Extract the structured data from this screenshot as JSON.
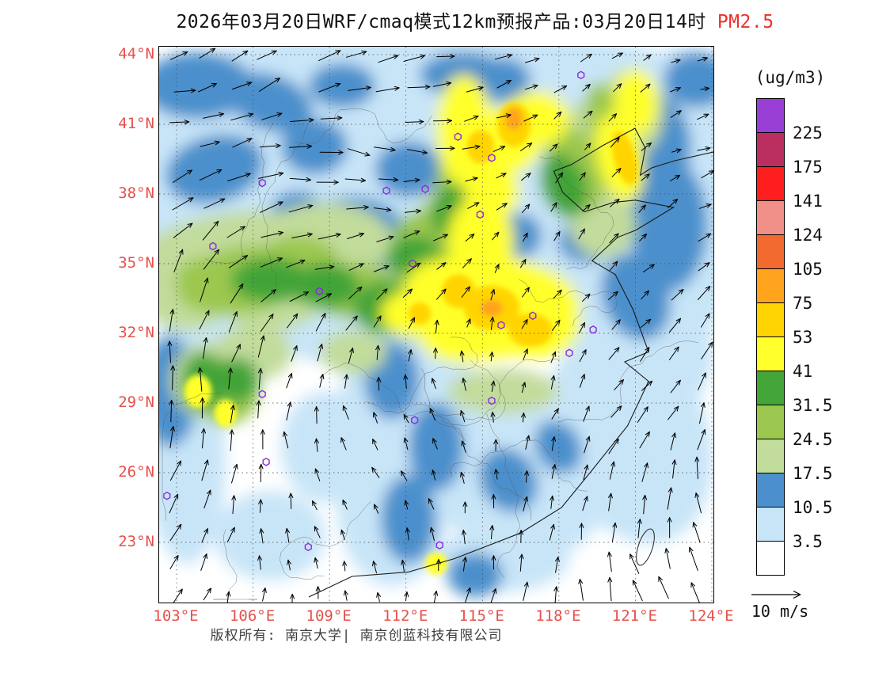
{
  "title": {
    "main": "2026年03月20日WRF/cmaq模式12km预报产品:03月20日14时",
    "pollutant": "PM2.5"
  },
  "footer": {
    "copyright": "版权所有: 南京大学| 南京创蓝科技有限公司"
  },
  "axes": {
    "lat_labels": [
      "44°N",
      "41°N",
      "38°N",
      "35°N",
      "32°N",
      "29°N",
      "26°N",
      "23°N"
    ],
    "lon_labels": [
      "103°E",
      "106°E",
      "109°E",
      "112°E",
      "115°E",
      "118°E",
      "121°E",
      "124°E"
    ]
  },
  "colorbar": {
    "unit_label": "(ug/m3)",
    "boundaries": [
      "225",
      "175",
      "141",
      "124",
      "105",
      "75",
      "53",
      "41",
      "31.5",
      "24.5",
      "17.5",
      "10.5",
      "3.5"
    ],
    "colors_top_to_bottom": [
      "#993fd6",
      "#bb2f60",
      "#ff1e1e",
      "#f09088",
      "#f26a2d",
      "#ffa41c",
      "#ffd400",
      "#ffff2b",
      "#43a437",
      "#9cc84f",
      "#c2dc9b",
      "#4b90cc",
      "#c8e5f8",
      "#ffffff"
    ]
  },
  "wind_legend": {
    "label": "10 m/s"
  },
  "colors": {
    "axis_label": "#e6514b",
    "title_pollutant": "#e8312c",
    "marker": "#8a2be2"
  },
  "map": {
    "markers": [
      [
        0.761,
        0.051
      ],
      [
        0.539,
        0.162
      ],
      [
        0.6,
        0.2
      ],
      [
        0.186,
        0.245
      ],
      [
        0.41,
        0.259
      ],
      [
        0.48,
        0.256
      ],
      [
        0.579,
        0.302
      ],
      [
        0.097,
        0.359
      ],
      [
        0.457,
        0.39
      ],
      [
        0.289,
        0.44
      ],
      [
        0.617,
        0.501
      ],
      [
        0.674,
        0.484
      ],
      [
        0.783,
        0.509
      ],
      [
        0.74,
        0.551
      ],
      [
        0.6,
        0.637
      ],
      [
        0.461,
        0.672
      ],
      [
        0.186,
        0.625
      ],
      [
        0.193,
        0.747
      ],
      [
        0.014,
        0.808
      ],
      [
        0.269,
        0.9
      ],
      [
        0.506,
        0.897
      ]
    ],
    "blobs": [
      [
        12,
        0.5,
        0.12,
        0.55,
        0.16,
        0
      ],
      [
        12,
        0.15,
        0.3,
        0.22,
        0.18,
        0
      ],
      [
        12,
        0.45,
        0.3,
        0.2,
        0.15,
        0
      ],
      [
        12,
        0.85,
        0.3,
        0.2,
        0.3,
        0
      ],
      [
        12,
        0.75,
        0.12,
        0.18,
        0.12,
        0
      ],
      [
        12,
        0.95,
        0.08,
        0.1,
        0.08,
        0
      ],
      [
        12,
        0.32,
        0.45,
        0.15,
        0.12,
        0
      ],
      [
        12,
        0.45,
        0.62,
        0.12,
        0.18,
        0
      ],
      [
        12,
        0.42,
        0.82,
        0.1,
        0.15,
        0
      ],
      [
        12,
        0.55,
        0.75,
        0.08,
        0.12,
        0
      ],
      [
        12,
        0.3,
        0.72,
        0.08,
        0.1,
        0
      ],
      [
        12,
        0.68,
        0.78,
        0.12,
        0.14,
        -30
      ],
      [
        12,
        0.85,
        0.7,
        0.14,
        0.2,
        -20
      ],
      [
        12,
        0.9,
        0.55,
        0.1,
        0.12,
        0
      ],
      [
        12,
        0.05,
        0.75,
        0.07,
        0.18,
        0
      ],
      [
        12,
        0.2,
        0.88,
        0.1,
        0.08,
        0
      ],
      [
        12,
        0.62,
        0.92,
        0.12,
        0.06,
        0
      ],
      [
        12,
        0.1,
        0.52,
        0.1,
        0.08,
        0
      ],
      [
        11,
        0.07,
        0.07,
        0.1,
        0.06,
        0
      ],
      [
        11,
        0.2,
        0.1,
        0.08,
        0.05,
        20
      ],
      [
        11,
        0.33,
        0.07,
        0.06,
        0.04,
        0
      ],
      [
        11,
        0.55,
        0.05,
        0.08,
        0.04,
        0
      ],
      [
        11,
        0.1,
        0.22,
        0.09,
        0.06,
        -15
      ],
      [
        11,
        0.28,
        0.18,
        0.06,
        0.05,
        0
      ],
      [
        11,
        0.45,
        0.22,
        0.06,
        0.05,
        0
      ],
      [
        11,
        0.62,
        0.06,
        0.05,
        0.04,
        0
      ],
      [
        11,
        0.97,
        0.06,
        0.06,
        0.05,
        0
      ],
      [
        11,
        0.35,
        0.33,
        0.09,
        0.06,
        0
      ],
      [
        11,
        0.42,
        0.4,
        0.07,
        0.06,
        0
      ],
      [
        11,
        0.3,
        0.4,
        0.06,
        0.05,
        0
      ],
      [
        11,
        0.25,
        0.3,
        0.05,
        0.04,
        0
      ],
      [
        11,
        0.88,
        0.18,
        0.08,
        0.1,
        0
      ],
      [
        11,
        0.92,
        0.32,
        0.07,
        0.12,
        0
      ],
      [
        11,
        0.86,
        0.45,
        0.06,
        0.08,
        -20
      ],
      [
        11,
        0.65,
        0.34,
        0.04,
        0.04,
        0
      ],
      [
        11,
        0.77,
        0.35,
        0.05,
        0.04,
        0
      ],
      [
        11,
        0.42,
        0.6,
        0.05,
        0.07,
        0
      ],
      [
        11,
        0.5,
        0.72,
        0.05,
        0.08,
        0
      ],
      [
        11,
        0.45,
        0.85,
        0.05,
        0.08,
        0
      ],
      [
        11,
        0.63,
        0.78,
        0.05,
        0.06,
        -30
      ],
      [
        11,
        0.72,
        0.72,
        0.04,
        0.05,
        -30
      ],
      [
        11,
        0.02,
        0.62,
        0.05,
        0.1,
        0
      ],
      [
        11,
        0.57,
        0.95,
        0.05,
        0.04,
        0
      ],
      [
        10,
        0.12,
        0.38,
        0.18,
        0.08,
        -10
      ],
      [
        10,
        0.05,
        0.45,
        0.08,
        0.06,
        0
      ],
      [
        10,
        0.3,
        0.35,
        0.12,
        0.07,
        0
      ],
      [
        10,
        0.2,
        0.45,
        0.1,
        0.06,
        0
      ],
      [
        10,
        0.1,
        0.6,
        0.08,
        0.07,
        0
      ],
      [
        10,
        0.17,
        0.55,
        0.07,
        0.05,
        0
      ],
      [
        10,
        0.55,
        0.3,
        0.08,
        0.06,
        0
      ],
      [
        10,
        0.48,
        0.45,
        0.1,
        0.08,
        0
      ],
      [
        10,
        0.78,
        0.2,
        0.08,
        0.1,
        0
      ],
      [
        10,
        0.85,
        0.12,
        0.06,
        0.08,
        0
      ],
      [
        10,
        0.8,
        0.32,
        0.06,
        0.06,
        0
      ],
      [
        10,
        0.62,
        0.62,
        0.1,
        0.04,
        0
      ],
      [
        10,
        0.35,
        0.55,
        0.06,
        0.04,
        0
      ],
      [
        9,
        0.15,
        0.42,
        0.12,
        0.06,
        -10
      ],
      [
        9,
        0.25,
        0.4,
        0.08,
        0.06,
        0
      ],
      [
        9,
        0.35,
        0.44,
        0.08,
        0.05,
        0
      ],
      [
        9,
        0.08,
        0.42,
        0.05,
        0.04,
        0
      ],
      [
        9,
        0.12,
        0.62,
        0.06,
        0.06,
        0
      ],
      [
        9,
        0.5,
        0.35,
        0.08,
        0.06,
        0
      ],
      [
        9,
        0.55,
        0.25,
        0.05,
        0.08,
        0
      ],
      [
        9,
        0.75,
        0.22,
        0.05,
        0.08,
        -20
      ],
      [
        9,
        0.82,
        0.16,
        0.04,
        0.1,
        -20
      ],
      [
        8,
        0.2,
        0.42,
        0.07,
        0.04,
        0
      ],
      [
        8,
        0.3,
        0.43,
        0.06,
        0.04,
        0
      ],
      [
        8,
        0.42,
        0.47,
        0.07,
        0.05,
        0
      ],
      [
        8,
        0.5,
        0.42,
        0.06,
        0.05,
        0
      ],
      [
        8,
        0.46,
        0.38,
        0.05,
        0.04,
        0
      ],
      [
        8,
        0.08,
        0.6,
        0.04,
        0.05,
        0
      ],
      [
        8,
        0.14,
        0.6,
        0.04,
        0.04,
        0
      ],
      [
        8,
        0.53,
        0.3,
        0.04,
        0.05,
        0
      ],
      [
        8,
        0.57,
        0.2,
        0.04,
        0.06,
        0
      ],
      [
        8,
        0.73,
        0.25,
        0.04,
        0.06,
        -20
      ],
      [
        7,
        0.6,
        0.47,
        0.16,
        0.09,
        0
      ],
      [
        7,
        0.68,
        0.5,
        0.08,
        0.06,
        0
      ],
      [
        7,
        0.52,
        0.44,
        0.08,
        0.06,
        0
      ],
      [
        7,
        0.55,
        0.52,
        0.08,
        0.05,
        0
      ],
      [
        7,
        0.58,
        0.35,
        0.06,
        0.08,
        0
      ],
      [
        7,
        0.55,
        0.15,
        0.05,
        0.1,
        0
      ],
      [
        7,
        0.62,
        0.17,
        0.07,
        0.06,
        0
      ],
      [
        7,
        0.68,
        0.13,
        0.06,
        0.05,
        0
      ],
      [
        7,
        0.6,
        0.26,
        0.05,
        0.05,
        0
      ],
      [
        7,
        0.83,
        0.2,
        0.04,
        0.08,
        -15
      ],
      [
        7,
        0.86,
        0.1,
        0.04,
        0.06,
        0
      ],
      [
        7,
        0.07,
        0.62,
        0.025,
        0.03,
        0
      ],
      [
        7,
        0.12,
        0.66,
        0.02,
        0.025,
        0
      ],
      [
        7,
        0.5,
        0.93,
        0.02,
        0.02,
        0
      ],
      [
        7,
        0.45,
        0.48,
        0.05,
        0.04,
        0
      ],
      [
        6,
        0.6,
        0.47,
        0.05,
        0.04,
        0
      ],
      [
        6,
        0.67,
        0.51,
        0.04,
        0.03,
        0
      ],
      [
        6,
        0.54,
        0.44,
        0.03,
        0.03,
        0
      ],
      [
        6,
        0.64,
        0.14,
        0.03,
        0.04,
        0
      ],
      [
        6,
        0.58,
        0.18,
        0.025,
        0.03,
        0
      ],
      [
        6,
        0.84,
        0.2,
        0.02,
        0.05,
        -15
      ],
      [
        6,
        0.47,
        0.48,
        0.02,
        0.02,
        0
      ],
      [
        5,
        0.6,
        0.47,
        0.02,
        0.015,
        0
      ],
      [
        5,
        0.64,
        0.13,
        0.015,
        0.02,
        0
      ]
    ]
  }
}
